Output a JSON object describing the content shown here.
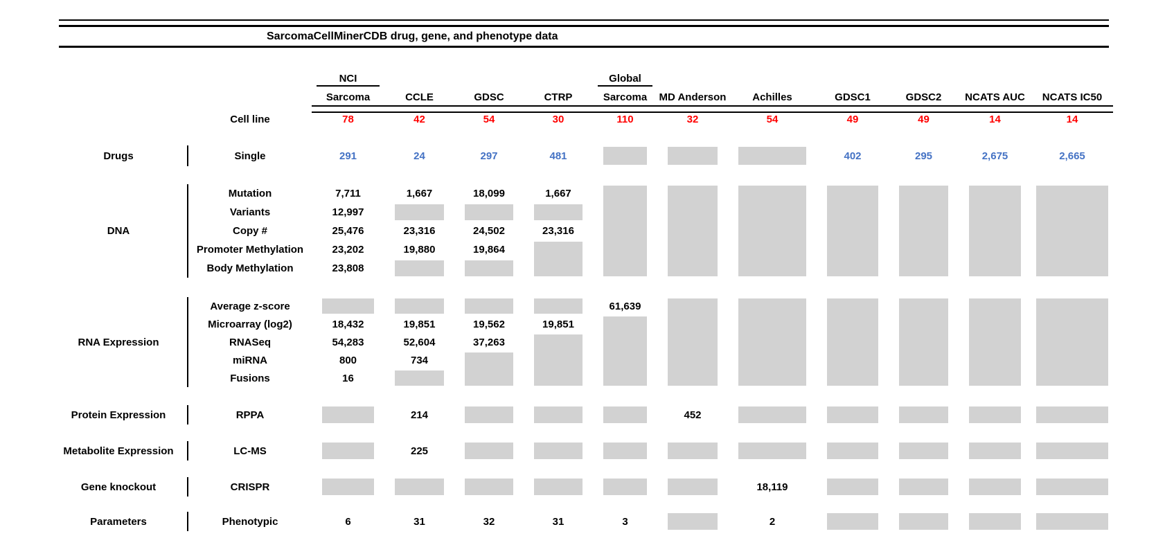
{
  "title": "SarcomaCellMinerCDB drug, gene, and phenotype data",
  "colors": {
    "cell_line_count_red": "#ff0000",
    "drug_count_blue": "#4472c4",
    "no_data_gray": "#d2d2d2",
    "rule_black": "#000000"
  },
  "columns": [
    {
      "id": "nci-sarcoma",
      "label_top": "NCI",
      "label": "Sarcoma"
    },
    {
      "id": "ccle",
      "label_top": "",
      "label": "CCLE"
    },
    {
      "id": "gdsc",
      "label_top": "",
      "label": "GDSC"
    },
    {
      "id": "ctrp",
      "label_top": "",
      "label": "CTRP"
    },
    {
      "id": "global-sarcoma",
      "label_top": "Global",
      "label": "Sarcoma"
    },
    {
      "id": "md-anderson",
      "label_top": "",
      "label": "MD Anderson"
    },
    {
      "id": "achilles",
      "label_top": "",
      "label": "Achilles"
    },
    {
      "id": "gdsc1",
      "label_top": "",
      "label": "GDSC1"
    },
    {
      "id": "gdsc2",
      "label_top": "",
      "label": "GDSC2"
    },
    {
      "id": "ncats-auc",
      "label_top": "",
      "label": "NCATS AUC"
    },
    {
      "id": "ncats-ic50",
      "label_top": "",
      "label": "NCATS IC50"
    }
  ],
  "cell_line": {
    "label": "Cell line",
    "values": [
      "78",
      "42",
      "54",
      "30",
      "110",
      "32",
      "54",
      "49",
      "49",
      "14",
      "14"
    ]
  },
  "sections": [
    {
      "category": "Drugs",
      "rows": [
        {
          "label": "Single",
          "value_color": "blue",
          "cells": [
            "291",
            "24",
            "297",
            "481",
            {
              "gray_rows": 1
            },
            {
              "gray_rows": 1
            },
            {
              "gray_rows": 1
            },
            "402",
            "295",
            "2,675",
            "2,665"
          ]
        }
      ]
    },
    {
      "category": "DNA",
      "rows": [
        {
          "label": "Mutation",
          "cells": [
            "7,711",
            "1,667",
            "18,099",
            "1,667",
            {
              "gray_rows": 5
            },
            {
              "gray_rows": 5
            },
            {
              "gray_rows": 5
            },
            {
              "gray_rows": 5
            },
            {
              "gray_rows": 5
            },
            {
              "gray_rows": 5
            },
            {
              "gray_rows": 5
            }
          ]
        },
        {
          "label": "Variants",
          "cells": [
            "12,997",
            {
              "gray_rows": 1
            },
            {
              "gray_rows": 1
            },
            {
              "gray_rows": 1
            },
            null,
            null,
            null,
            null,
            null,
            null,
            null
          ]
        },
        {
          "label": "Copy #",
          "cells": [
            "25,476",
            "23,316",
            "24,502",
            "23,316",
            null,
            null,
            null,
            null,
            null,
            null,
            null
          ]
        },
        {
          "label": "Promoter Methylation",
          "cells": [
            "23,202",
            "19,880",
            "19,864",
            {
              "gray_rows": 2
            },
            null,
            null,
            null,
            null,
            null,
            null,
            null
          ]
        },
        {
          "label": "Body Methylation",
          "cells": [
            "23,808",
            {
              "gray_rows": 1
            },
            {
              "gray_rows": 1
            },
            null,
            null,
            null,
            null,
            null,
            null,
            null,
            null
          ]
        }
      ]
    },
    {
      "category": "RNA Expression",
      "rows": [
        {
          "label": "Average z-score",
          "cells": [
            {
              "gray_rows": 1
            },
            {
              "gray_rows": 1
            },
            {
              "gray_rows": 1
            },
            {
              "gray_rows": 1
            },
            "61,639",
            {
              "gray_rows": 5
            },
            {
              "gray_rows": 5
            },
            {
              "gray_rows": 5
            },
            {
              "gray_rows": 5
            },
            {
              "gray_rows": 5
            },
            {
              "gray_rows": 5
            }
          ]
        },
        {
          "label": "Microarray (log2)",
          "cells": [
            "18,432",
            "19,851",
            "19,562",
            "19,851",
            {
              "gray_rows": 4
            },
            null,
            null,
            null,
            null,
            null,
            null
          ]
        },
        {
          "label": "RNASeq",
          "cells": [
            "54,283",
            "52,604",
            "37,263",
            {
              "gray_rows": 3
            },
            null,
            null,
            null,
            null,
            null,
            null,
            null
          ]
        },
        {
          "label": "miRNA",
          "cells": [
            "800",
            "734",
            {
              "gray_rows": 2
            },
            null,
            null,
            null,
            null,
            null,
            null,
            null,
            null
          ]
        },
        {
          "label": "Fusions",
          "cells": [
            "16",
            {
              "gray_rows": 1
            },
            null,
            null,
            null,
            null,
            null,
            null,
            null,
            null,
            null
          ]
        }
      ]
    },
    {
      "category": "Protein Expression",
      "rows": [
        {
          "label": "RPPA",
          "cells": [
            {
              "gray_rows": 1
            },
            "214",
            {
              "gray_rows": 1
            },
            {
              "gray_rows": 1
            },
            {
              "gray_rows": 1
            },
            "452",
            {
              "gray_rows": 1
            },
            {
              "gray_rows": 1
            },
            {
              "gray_rows": 1
            },
            {
              "gray_rows": 1
            },
            {
              "gray_rows": 1
            }
          ]
        }
      ]
    },
    {
      "category": "Metabolite Expression",
      "rows": [
        {
          "label": "LC-MS",
          "cells": [
            {
              "gray_rows": 1
            },
            "225",
            {
              "gray_rows": 1
            },
            {
              "gray_rows": 1
            },
            {
              "gray_rows": 1
            },
            {
              "gray_rows": 1
            },
            {
              "gray_rows": 1
            },
            {
              "gray_rows": 1
            },
            {
              "gray_rows": 1
            },
            {
              "gray_rows": 1
            },
            {
              "gray_rows": 1
            }
          ]
        }
      ]
    },
    {
      "category": "Gene knockout",
      "rows": [
        {
          "label": "CRISPR",
          "cells": [
            {
              "gray_rows": 1
            },
            {
              "gray_rows": 1
            },
            {
              "gray_rows": 1
            },
            {
              "gray_rows": 1
            },
            {
              "gray_rows": 1
            },
            {
              "gray_rows": 1
            },
            "18,119",
            {
              "gray_rows": 1
            },
            {
              "gray_rows": 1
            },
            {
              "gray_rows": 1
            },
            {
              "gray_rows": 1
            }
          ]
        }
      ]
    },
    {
      "category": "Parameters",
      "rows": [
        {
          "label": "Phenotypic",
          "cells": [
            "6",
            "31",
            "32",
            "31",
            "3",
            {
              "gray_rows": 1
            },
            "2",
            {
              "gray_rows": 1
            },
            {
              "gray_rows": 1
            },
            {
              "gray_rows": 1
            },
            {
              "gray_rows": 1
            }
          ]
        }
      ]
    }
  ]
}
